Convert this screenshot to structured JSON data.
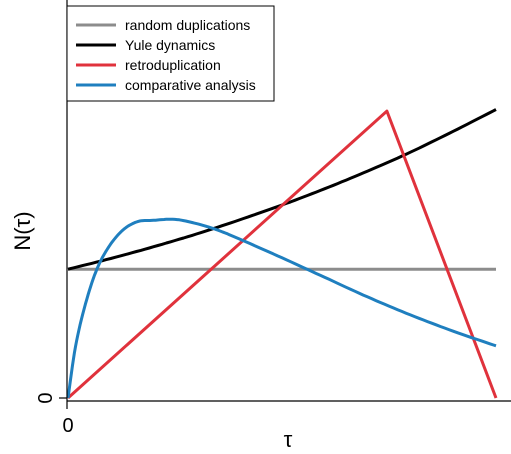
{
  "chart_data": {
    "type": "line",
    "xlabel": "τ",
    "ylabel": "N(τ)",
    "x_tick_labels": [
      "0"
    ],
    "y_tick_labels": [
      "0"
    ],
    "xlim": [
      0,
      1
    ],
    "ylim": [
      0,
      1
    ],
    "legend_position": "top-left",
    "grid": false,
    "series": [
      {
        "name": "random duplications",
        "color": "#8c8c8c",
        "x": [
          0,
          1
        ],
        "y": [
          0.395,
          0.395
        ]
      },
      {
        "name": "Yule dynamics",
        "color": "#000000",
        "x": [
          0,
          0.1,
          0.2,
          0.3,
          0.4,
          0.5,
          0.6,
          0.7,
          0.8,
          0.9,
          1.0
        ],
        "y": [
          0.395,
          0.428,
          0.464,
          0.503,
          0.546,
          0.592,
          0.642,
          0.696,
          0.754,
          0.818,
          0.885
        ]
      },
      {
        "name": "retroduplication",
        "color": "#e0323c",
        "x": [
          0,
          0.745,
          1.0
        ],
        "y": [
          0,
          0.88,
          0
        ]
      },
      {
        "name": "comparative analysis",
        "color": "#1f7fbf",
        "x": [
          0,
          0.02,
          0.05,
          0.08,
          0.12,
          0.16,
          0.2,
          0.25,
          0.3,
          0.35,
          0.4,
          0.5,
          0.6,
          0.7,
          0.8,
          0.9,
          1.0
        ],
        "y": [
          0,
          0.175,
          0.33,
          0.43,
          0.505,
          0.54,
          0.545,
          0.548,
          0.535,
          0.515,
          0.488,
          0.43,
          0.37,
          0.31,
          0.255,
          0.205,
          0.16
        ]
      }
    ]
  }
}
